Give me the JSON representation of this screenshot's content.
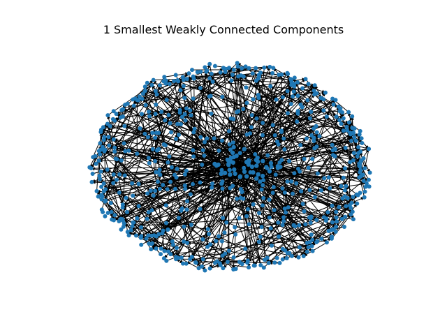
{
  "figure": {
    "title": "1 Smallest Weakly Connected Components"
  },
  "graph": {
    "node_color": "#1f77b4",
    "edge_color": "#000000",
    "directed": true,
    "layout": "force-directed, roughly elliptical cloud with a dense hub cluster at the center"
  }
}
